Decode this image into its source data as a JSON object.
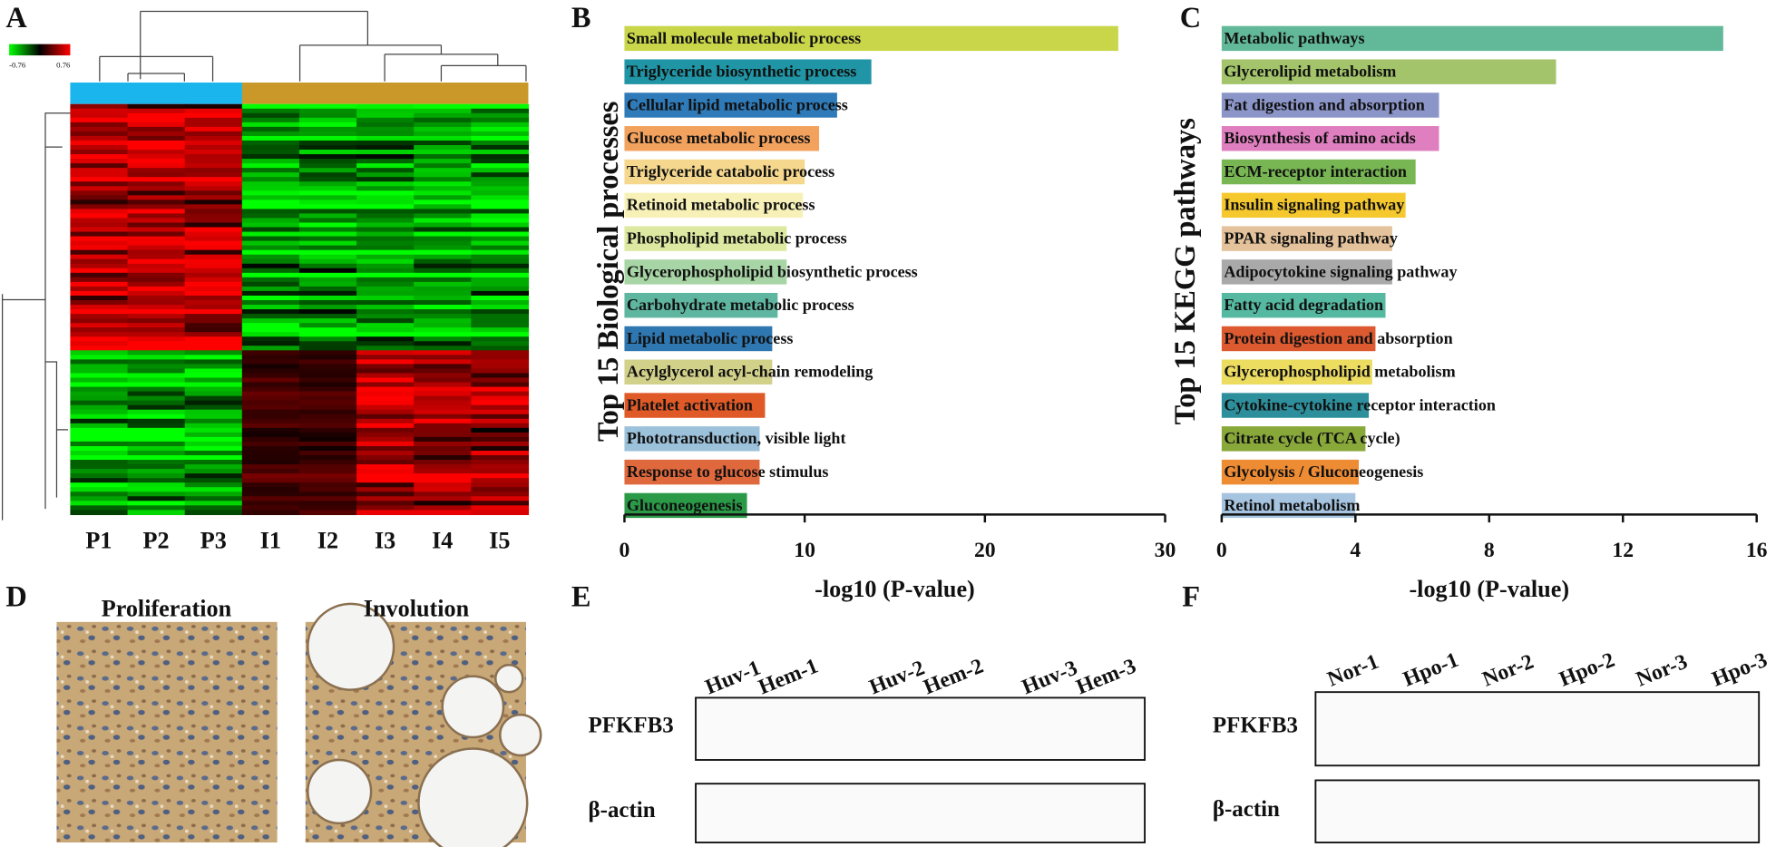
{
  "panel_labels": [
    "A",
    "B",
    "C",
    "D",
    "E",
    "F"
  ],
  "heatmap": {
    "colorbar_labels": [
      "-0.76",
      "0.76"
    ],
    "columns": [
      "P1",
      "P2",
      "P3",
      "I1",
      "I2",
      "I3",
      "I4",
      "I5"
    ]
  },
  "chart_data": [
    {
      "type": "bar",
      "orientation": "horizontal",
      "y_label": "Top 15 Biological processes",
      "x_label": "-log10 (P-value)",
      "categories": [
        "Small molecule metabolic process",
        "Triglyceride biosynthetic process",
        "Cellular lipid metabolic process",
        "Glucose metabolic process",
        "Triglyceride catabolic process",
        "Retinoid metabolic process",
        "Phospholipid metabolic process",
        "Glycerophospholipid biosynthetic process",
        "Carbohydrate metabolic process",
        "Lipid metabolic process",
        "Acylglycerol acyl-chain remodeling",
        "Platelet activation",
        "Phototransduction, visible light",
        "Response to glucose stimulus",
        "Gluconeogenesis"
      ],
      "values": [
        27.4,
        13.7,
        11.8,
        10.8,
        10.0,
        9.9,
        9.0,
        9.0,
        8.5,
        8.2,
        8.2,
        7.8,
        7.5,
        7.5,
        6.8
      ],
      "colors": [
        "#c9d64a",
        "#1f95a5",
        "#2f7ab8",
        "#f3a25e",
        "#f5d88d",
        "#f7f1b8",
        "#dde9a0",
        "#a8d5a5",
        "#5fb6a0",
        "#2f77b0",
        "#d2d18a",
        "#e05a28",
        "#9cc1da",
        "#e0683d",
        "#2a9a47"
      ],
      "xlim": [
        0,
        30
      ],
      "xticks": [
        0,
        10,
        20,
        30
      ]
    },
    {
      "type": "bar",
      "orientation": "horizontal",
      "y_label": "Top 15 KEGG pathways",
      "x_label": "-log10 (P-value)",
      "categories": [
        "Metabolic pathways",
        "Glycerolipid metabolism",
        "Fat digestion and absorption",
        "Biosynthesis of amino acids",
        "ECM-receptor interaction",
        "Insulin signaling pathway",
        "PPAR signaling pathway",
        "Adipocytokine signaling pathway",
        "Fatty acid degradation",
        "Protein digestion and absorption",
        "Glycerophospholipid metabolism",
        "Cytokine-cytokine receptor interaction",
        "Citrate cycle (TCA cycle)",
        "Glycolysis / Gluconeogenesis",
        "Retinol metabolism"
      ],
      "values": [
        15.0,
        10.0,
        6.5,
        6.5,
        5.8,
        5.5,
        5.1,
        5.1,
        4.9,
        4.6,
        4.5,
        4.4,
        4.3,
        4.1,
        4.0
      ],
      "colors": [
        "#62b999",
        "#a3c46a",
        "#8b95c8",
        "#df7fbf",
        "#77b652",
        "#f5c82e",
        "#e4c29b",
        "#a9a9a9",
        "#55b8a0",
        "#dd5a30",
        "#ecdc60",
        "#2e8f9c",
        "#88a83a",
        "#ee8c34",
        "#a6c4e0"
      ],
      "xlim": [
        0,
        16
      ],
      "xticks": [
        0,
        4,
        8,
        12,
        16
      ]
    }
  ],
  "ihc": {
    "labels": [
      "Proliferation",
      "Involution"
    ]
  },
  "blot_e": {
    "lanes": [
      "Huv-1",
      "Hem-1",
      "Huv-2",
      "Hem-2",
      "Huv-3",
      "Hem-3"
    ],
    "rows": [
      "PFKFB3",
      "β-actin"
    ]
  },
  "blot_f": {
    "lanes": [
      "Nor-1",
      "Hpo-1",
      "Nor-2",
      "Hpo-2",
      "Nor-3",
      "Hpo-3"
    ],
    "rows": [
      "PFKFB3",
      "β-actin"
    ]
  }
}
